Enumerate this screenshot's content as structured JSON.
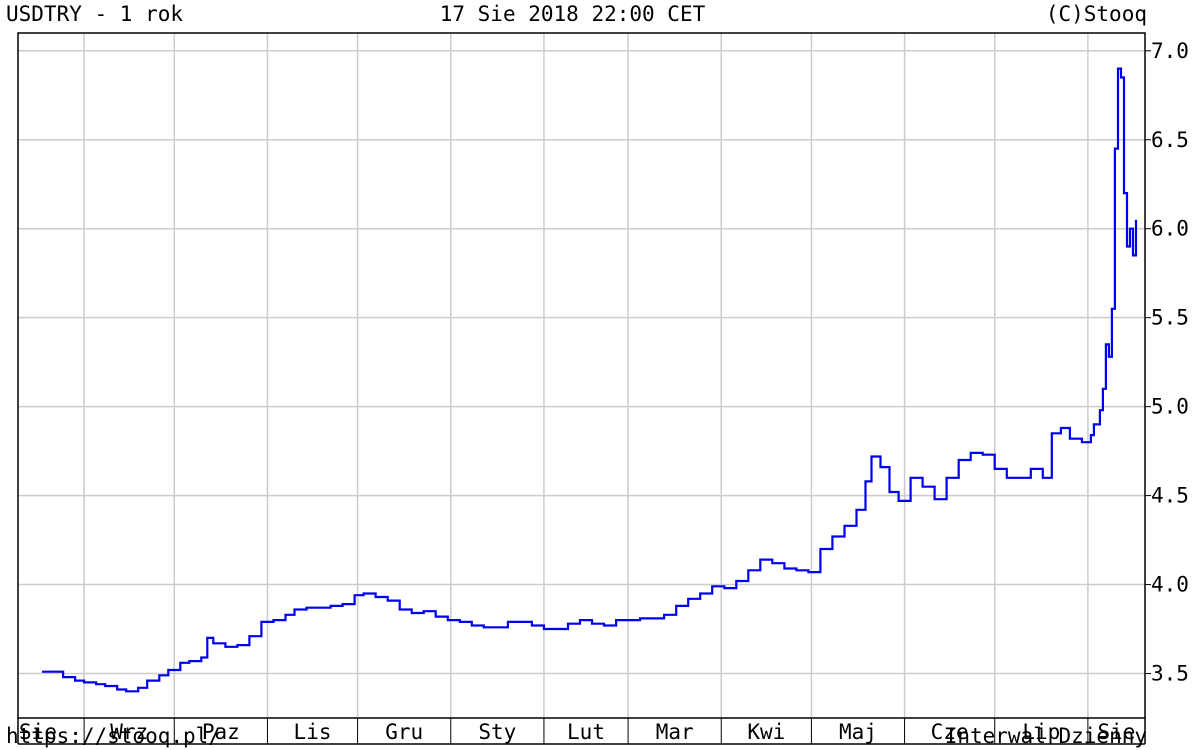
{
  "header": {
    "title": "USDTRY - 1 rok",
    "timestamp": "17 Sie 2018 22:00 CET",
    "copyright": "(C)Stooq"
  },
  "footer": {
    "url": "https://stooq.pl/",
    "interval": "Interwal Dzienny"
  },
  "colors": {
    "series": "#0000ee",
    "grid": "#cccccc",
    "axis": "#000000"
  },
  "chart_data": {
    "type": "line",
    "title": "USDTRY - 1 rok",
    "xlabel": "",
    "ylabel": "",
    "ylim": [
      3.25,
      7.1
    ],
    "y_ticks": [
      3.5,
      4.0,
      4.5,
      5.0,
      5.5,
      6.0,
      6.5,
      7.0
    ],
    "y_tick_labels": [
      "3.5",
      "4.0",
      "4.5",
      "5.0",
      "5.5",
      "6.0",
      "6.5",
      "7.0"
    ],
    "x_tick_labels": [
      "Sie",
      "Wrz",
      "Paz",
      "Lis",
      "Gru",
      "Sty",
      "Lut",
      "Mar",
      "Kwi",
      "Maj",
      "Cze",
      "Lip",
      "Sie"
    ],
    "x_tick_dates": [
      "2017-08-15",
      "2017-09-01",
      "2017-10-01",
      "2017-11-01",
      "2017-12-01",
      "2018-01-01",
      "2018-02-01",
      "2018-03-01",
      "2018-04-01",
      "2018-05-01",
      "2018-06-01",
      "2018-07-01",
      "2018-08-01"
    ],
    "grid": true,
    "legend": "none",
    "series": [
      {
        "values": [
          [
            "2017-08-18",
            3.51
          ],
          [
            "2017-08-22",
            3.51
          ],
          [
            "2017-08-25",
            3.48
          ],
          [
            "2017-08-29",
            3.46
          ],
          [
            "2017-09-01",
            3.45
          ],
          [
            "2017-09-05",
            3.44
          ],
          [
            "2017-09-08",
            3.43
          ],
          [
            "2017-09-12",
            3.41
          ],
          [
            "2017-09-15",
            3.4
          ],
          [
            "2017-09-19",
            3.42
          ],
          [
            "2017-09-22",
            3.46
          ],
          [
            "2017-09-26",
            3.49
          ],
          [
            "2017-09-29",
            3.52
          ],
          [
            "2017-10-03",
            3.56
          ],
          [
            "2017-10-06",
            3.57
          ],
          [
            "2017-10-10",
            3.59
          ],
          [
            "2017-10-12",
            3.7
          ],
          [
            "2017-10-14",
            3.67
          ],
          [
            "2017-10-18",
            3.65
          ],
          [
            "2017-10-22",
            3.66
          ],
          [
            "2017-10-26",
            3.71
          ],
          [
            "2017-10-30",
            3.79
          ],
          [
            "2017-11-03",
            3.8
          ],
          [
            "2017-11-07",
            3.83
          ],
          [
            "2017-11-10",
            3.86
          ],
          [
            "2017-11-14",
            3.87
          ],
          [
            "2017-11-18",
            3.87
          ],
          [
            "2017-11-22",
            3.88
          ],
          [
            "2017-11-26",
            3.89
          ],
          [
            "2017-11-30",
            3.94
          ],
          [
            "2017-12-03",
            3.95
          ],
          [
            "2017-12-07",
            3.93
          ],
          [
            "2017-12-11",
            3.91
          ],
          [
            "2017-12-15",
            3.86
          ],
          [
            "2017-12-19",
            3.84
          ],
          [
            "2017-12-23",
            3.85
          ],
          [
            "2017-12-27",
            3.82
          ],
          [
            "2017-12-31",
            3.8
          ],
          [
            "2018-01-04",
            3.79
          ],
          [
            "2018-01-08",
            3.77
          ],
          [
            "2018-01-12",
            3.76
          ],
          [
            "2018-01-16",
            3.76
          ],
          [
            "2018-01-20",
            3.79
          ],
          [
            "2018-01-24",
            3.79
          ],
          [
            "2018-01-28",
            3.77
          ],
          [
            "2018-02-01",
            3.75
          ],
          [
            "2018-02-05",
            3.75
          ],
          [
            "2018-02-09",
            3.78
          ],
          [
            "2018-02-13",
            3.8
          ],
          [
            "2018-02-17",
            3.78
          ],
          [
            "2018-02-21",
            3.77
          ],
          [
            "2018-02-25",
            3.8
          ],
          [
            "2018-03-01",
            3.8
          ],
          [
            "2018-03-05",
            3.81
          ],
          [
            "2018-03-09",
            3.81
          ],
          [
            "2018-03-13",
            3.83
          ],
          [
            "2018-03-17",
            3.88
          ],
          [
            "2018-03-21",
            3.92
          ],
          [
            "2018-03-25",
            3.95
          ],
          [
            "2018-03-29",
            3.99
          ],
          [
            "2018-04-02",
            3.98
          ],
          [
            "2018-04-06",
            4.02
          ],
          [
            "2018-04-10",
            4.08
          ],
          [
            "2018-04-14",
            4.14
          ],
          [
            "2018-04-18",
            4.12
          ],
          [
            "2018-04-22",
            4.09
          ],
          [
            "2018-04-26",
            4.08
          ],
          [
            "2018-04-30",
            4.07
          ],
          [
            "2018-05-04",
            4.2
          ],
          [
            "2018-05-08",
            4.27
          ],
          [
            "2018-05-12",
            4.33
          ],
          [
            "2018-05-16",
            4.42
          ],
          [
            "2018-05-19",
            4.58
          ],
          [
            "2018-05-21",
            4.72
          ],
          [
            "2018-05-24",
            4.66
          ],
          [
            "2018-05-27",
            4.52
          ],
          [
            "2018-05-30",
            4.47
          ],
          [
            "2018-06-03",
            4.6
          ],
          [
            "2018-06-07",
            4.55
          ],
          [
            "2018-06-11",
            4.48
          ],
          [
            "2018-06-15",
            4.6
          ],
          [
            "2018-06-19",
            4.7
          ],
          [
            "2018-06-23",
            4.74
          ],
          [
            "2018-06-27",
            4.73
          ],
          [
            "2018-07-01",
            4.65
          ],
          [
            "2018-07-05",
            4.6
          ],
          [
            "2018-07-09",
            4.6
          ],
          [
            "2018-07-13",
            4.65
          ],
          [
            "2018-07-17",
            4.6
          ],
          [
            "2018-07-20",
            4.85
          ],
          [
            "2018-07-23",
            4.88
          ],
          [
            "2018-07-26",
            4.82
          ],
          [
            "2018-07-30",
            4.8
          ],
          [
            "2018-08-02",
            4.84
          ],
          [
            "2018-08-03",
            4.9
          ],
          [
            "2018-08-05",
            4.98
          ],
          [
            "2018-08-06",
            5.1
          ],
          [
            "2018-08-07",
            5.35
          ],
          [
            "2018-08-08",
            5.28
          ],
          [
            "2018-08-09",
            5.55
          ],
          [
            "2018-08-10",
            6.45
          ],
          [
            "2018-08-11",
            6.9
          ],
          [
            "2018-08-12",
            6.85
          ],
          [
            "2018-08-13",
            6.2
          ],
          [
            "2018-08-14",
            5.9
          ],
          [
            "2018-08-15",
            6.0
          ],
          [
            "2018-08-16",
            5.85
          ],
          [
            "2018-08-17",
            6.05
          ]
        ]
      }
    ]
  }
}
